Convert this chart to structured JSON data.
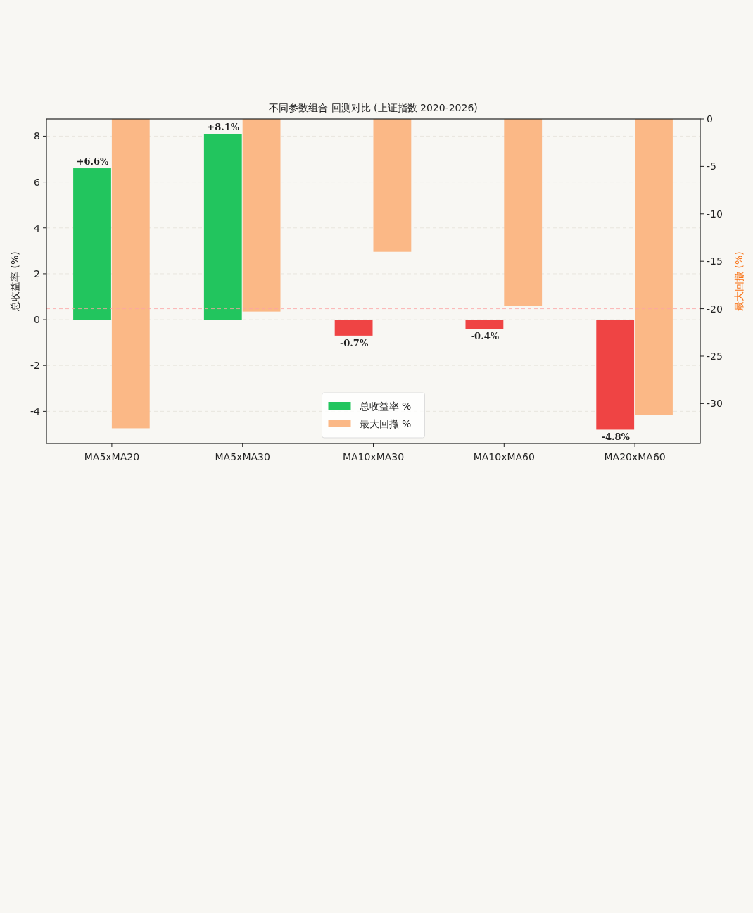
{
  "chart_data": {
    "type": "bar",
    "title": "不同参数组合 回测对比 (上证指数 2020-2026)",
    "ylabel": "总收益率 (%)",
    "y2label": "最大回撤 (%)",
    "categories": [
      "MA5xMA20",
      "MA5xMA30",
      "MA10xMA30",
      "MA10xMA60",
      "MA20xMA60"
    ],
    "series": [
      {
        "name": "总收益率 %",
        "color": "#22c55e",
        "colors": [
          "#22c55e",
          "#22c55e",
          "#ef4444",
          "#ef4444",
          "#ef4444"
        ],
        "values": [
          6.6,
          8.1,
          -0.7,
          -0.4,
          -4.8
        ],
        "value_labels": [
          "+6.6%",
          "+8.1%",
          "-0.7%",
          "-0.4%",
          "-4.8%"
        ]
      },
      {
        "name": "最大回撤 %",
        "color": "#fbb886",
        "axis": "y2",
        "values": [
          -32.6,
          -20.3,
          -14.0,
          -19.7,
          -31.2
        ]
      }
    ],
    "ylim": [
      -5.4,
      8.75
    ],
    "yticks": [
      -4,
      -2,
      0,
      2,
      4,
      6,
      8
    ],
    "y2lim": [
      -34.2,
      0
    ],
    "y2ticks": [
      -30,
      -25,
      -20,
      -15,
      -10,
      -5,
      0
    ],
    "ref_lines": [
      {
        "axis": "y2",
        "value": -20,
        "color": "#fca5a5",
        "line_style": "dashed"
      }
    ],
    "grid": "y",
    "legend": "bottom"
  }
}
